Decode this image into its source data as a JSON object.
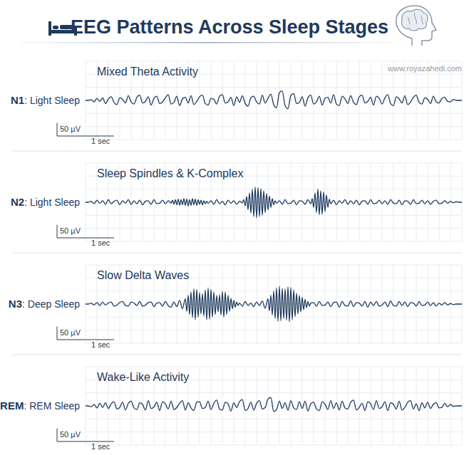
{
  "header": {
    "title": "EEG Patterns Across Sleep Stages",
    "watermark": "www.royazahedi.com"
  },
  "chart_data": [
    {
      "type": "line",
      "title": "Mixed Theta Activity",
      "ylabel": "N1: Light Sleep",
      "color": "#1f3a5c",
      "xlim": [
        0,
        6.6
      ],
      "ylim": [
        -150,
        150
      ],
      "xticks": [
        0,
        0.2,
        0.4,
        0.6,
        0.8,
        1,
        1.2,
        1.4,
        1.6,
        1.8,
        2,
        2.2,
        2.4,
        2.6,
        2.8,
        3,
        3.2,
        3.4,
        3.6,
        3.8,
        4,
        4.2,
        4.4,
        4.6,
        4.8,
        5,
        5.2,
        5.4,
        5.6,
        5.8,
        6,
        6.2,
        6.4,
        6.6
      ],
      "yticks": [
        -150,
        -100,
        -50,
        0,
        50,
        100,
        150
      ],
      "grid": true,
      "tick_labels": false,
      "scale_bar": {
        "amplitude": 50,
        "amplitude_label": "50 µV",
        "time": 1,
        "time_label": "1 sec"
      },
      "x": [
        0,
        0.05,
        0.1,
        0.15,
        0.2,
        0.25,
        0.3,
        0.35,
        0.4,
        0.45,
        0.5,
        0.55,
        0.6,
        0.65,
        0.7,
        0.75,
        0.8,
        0.85,
        0.9,
        0.95,
        1,
        1.05,
        1.1,
        1.15,
        1.2,
        1.25,
        1.3,
        1.35,
        1.4,
        1.45,
        1.5,
        1.55,
        1.6,
        1.65,
        1.7,
        1.75,
        1.8,
        1.85,
        1.9,
        1.95,
        2,
        2.05,
        2.1,
        2.15,
        2.2,
        2.25,
        2.3,
        2.35,
        2.4,
        2.45,
        2.5,
        2.55,
        2.6,
        2.65,
        2.7,
        2.75,
        2.8,
        2.85,
        2.9,
        2.95,
        3,
        3.05,
        3.1,
        3.15,
        3.2,
        3.25,
        3.3,
        3.35,
        3.4,
        3.45,
        3.5,
        3.55,
        3.6,
        3.65,
        3.7,
        3.75,
        3.8,
        3.85,
        3.9,
        3.95,
        4,
        4.05,
        4.1,
        4.15,
        4.2,
        4.25,
        4.3,
        4.35,
        4.4,
        4.45,
        4.5,
        4.55,
        4.6,
        4.65,
        4.7,
        4.75,
        4.8,
        4.85,
        4.9,
        4.95,
        5,
        5.05,
        5.1,
        5.15,
        5.2,
        5.25,
        5.3,
        5.35,
        5.4,
        5.45,
        5.5,
        5.55,
        5.6,
        5.65,
        5.7,
        5.75,
        5.8,
        5.85,
        5.9,
        5.95,
        6,
        6.05,
        6.1,
        6.15,
        6.2,
        6.25,
        6.3,
        6.35,
        6.4,
        6.45,
        6.5,
        6.55,
        6.6
      ],
      "values": [
        0,
        0,
        3,
        -6,
        8,
        -4,
        10,
        -12,
        6,
        14,
        -8,
        -16,
        10,
        4,
        -10,
        18,
        -6,
        -14,
        12,
        20,
        -10,
        -4,
        14,
        -18,
        8,
        16,
        -12,
        -6,
        10,
        22,
        -14,
        -8,
        16,
        -20,
        6,
        12,
        -10,
        18,
        -16,
        -4,
        14,
        20,
        -12,
        -18,
        8,
        4,
        -14,
        16,
        22,
        -10,
        -6,
        12,
        -20,
        14,
        -8,
        18,
        -12,
        -22,
        10,
        16,
        -6,
        -14,
        20,
        -10,
        8,
        24,
        -16,
        -28,
        30,
        36,
        -20,
        -32,
        18,
        26,
        -12,
        -8,
        14,
        -22,
        10,
        20,
        -14,
        -6,
        16,
        -18,
        8,
        12,
        -10,
        22,
        -14,
        -20,
        16,
        6,
        -12,
        18,
        -8,
        -16,
        14,
        20,
        -10,
        -4,
        12,
        -18,
        16,
        8,
        -14,
        10,
        22,
        -12,
        -20,
        14,
        6,
        -10,
        18,
        -16,
        -6,
        12,
        20,
        -8,
        -14,
        10,
        4,
        -12,
        16,
        -6,
        -10,
        8,
        12,
        -4,
        -6,
        4,
        0,
        0,
        0
      ]
    },
    {
      "type": "line",
      "title": "Sleep Spindles & K-Complex",
      "ylabel": "N2: Light Sleep",
      "color": "#1f3a5c",
      "xlim": [
        0,
        6.6
      ],
      "ylim": [
        -150,
        150
      ],
      "xticks": [
        0,
        0.2,
        0.4,
        0.6,
        0.8,
        1,
        1.2,
        1.4,
        1.6,
        1.8,
        2,
        2.2,
        2.4,
        2.6,
        2.8,
        3,
        3.2,
        3.4,
        3.6,
        3.8,
        4,
        4.2,
        4.4,
        4.6,
        4.8,
        5,
        5.2,
        5.4,
        5.6,
        5.8,
        6,
        6.2,
        6.4,
        6.6
      ],
      "yticks": [
        -150,
        -100,
        -50,
        0,
        50,
        100,
        150
      ],
      "grid": true,
      "tick_labels": false,
      "scale_bar": {
        "amplitude": 50,
        "amplitude_label": "50 µV",
        "time": 1,
        "time_label": "1 sec"
      },
      "x": [
        0,
        0.05,
        0.1,
        0.15,
        0.2,
        0.25,
        0.3,
        0.35,
        0.4,
        0.45,
        0.5,
        0.55,
        0.6,
        0.65,
        0.7,
        0.75,
        0.8,
        0.85,
        0.9,
        0.95,
        1,
        1.05,
        1.1,
        1.15,
        1.2,
        1.25,
        1.3,
        1.35,
        1.4,
        1.45,
        1.5,
        1.525,
        1.55,
        1.575,
        1.6,
        1.625,
        1.65,
        1.675,
        1.7,
        1.725,
        1.75,
        1.775,
        1.8,
        1.825,
        1.85,
        1.875,
        1.9,
        1.925,
        1.95,
        1.975,
        2,
        2.025,
        2.05,
        2.075,
        2.1,
        2.125,
        2.15,
        2.2,
        2.25,
        2.3,
        2.35,
        2.4,
        2.45,
        2.5,
        2.55,
        2.6,
        2.65,
        2.7,
        2.75,
        2.775,
        2.8,
        2.825,
        2.85,
        2.875,
        2.9,
        2.925,
        2.95,
        2.975,
        3,
        3.025,
        3.05,
        3.075,
        3.1,
        3.125,
        3.15,
        3.175,
        3.2,
        3.225,
        3.25,
        3.275,
        3.3,
        3.325,
        3.35,
        3.4,
        3.45,
        3.5,
        3.55,
        3.6,
        3.65,
        3.7,
        3.75,
        3.8,
        3.85,
        3.9,
        3.95,
        3.975,
        4,
        4.025,
        4.05,
        4.075,
        4.1,
        4.125,
        4.15,
        4.175,
        4.2,
        4.225,
        4.25,
        4.275,
        4.3,
        4.35,
        4.4,
        4.45,
        4.5,
        4.55,
        4.6,
        4.65,
        4.7,
        4.75,
        4.8,
        4.85,
        4.9,
        4.95,
        5,
        5.05,
        5.1,
        5.15,
        5.2,
        5.25,
        5.3,
        5.35,
        5.4,
        5.45,
        5.5,
        5.55,
        5.6,
        5.65,
        5.7,
        5.75,
        5.8,
        5.85,
        5.9,
        5.95,
        6,
        6.05,
        6.1,
        6.15,
        6.2,
        6.25,
        6.3,
        6.35,
        6.4,
        6.45,
        6.5,
        6.55,
        6.6
      ],
      "values": [
        0,
        0,
        4,
        -6,
        8,
        -4,
        6,
        -8,
        10,
        -6,
        4,
        8,
        -10,
        6,
        -4,
        10,
        -8,
        6,
        -6,
        8,
        -10,
        4,
        6,
        -8,
        10,
        -6,
        -4,
        8,
        -6,
        6,
        -4,
        8,
        -8,
        10,
        -10,
        12,
        -12,
        10,
        -10,
        14,
        -12,
        12,
        -14,
        10,
        -12,
        14,
        -10,
        12,
        -12,
        10,
        -8,
        8,
        -10,
        6,
        -6,
        4,
        -4,
        6,
        -8,
        10,
        -6,
        4,
        -10,
        8,
        -4,
        6,
        -8,
        4,
        -2,
        10,
        -14,
        22,
        -28,
        36,
        -42,
        50,
        -55,
        58,
        -60,
        56,
        -55,
        52,
        -50,
        44,
        -40,
        34,
        -30,
        24,
        -20,
        14,
        -10,
        6,
        -4,
        6,
        -8,
        10,
        -6,
        -4,
        8,
        -10,
        6,
        4,
        -8,
        10,
        -6,
        14,
        -20,
        36,
        -40,
        50,
        -48,
        44,
        -46,
        40,
        -36,
        28,
        -20,
        12,
        -6,
        8,
        -10,
        6,
        -4,
        10,
        -8,
        6,
        -6,
        8,
        -10,
        4,
        6,
        -8,
        10,
        -6,
        -4,
        8,
        -6,
        6,
        -8,
        10,
        -4,
        -6,
        8,
        -10,
        6,
        4,
        -8,
        10,
        -6,
        -4,
        8,
        -6,
        6,
        -8,
        4,
        8,
        -6,
        -4,
        6,
        -4,
        4,
        -2,
        2,
        0,
        0
      ]
    },
    {
      "type": "line",
      "title": "Slow Delta Waves",
      "ylabel": "N3: Deep Sleep",
      "color": "#1f3a5c",
      "xlim": [
        0,
        6.6
      ],
      "ylim": [
        -150,
        150
      ],
      "xticks": [
        0,
        0.2,
        0.4,
        0.6,
        0.8,
        1,
        1.2,
        1.4,
        1.6,
        1.8,
        2,
        2.2,
        2.4,
        2.6,
        2.8,
        3,
        3.2,
        3.4,
        3.6,
        3.8,
        4,
        4.2,
        4.4,
        4.6,
        4.8,
        5,
        5.2,
        5.4,
        5.6,
        5.8,
        6,
        6.2,
        6.4,
        6.6
      ],
      "yticks": [
        -150,
        -100,
        -50,
        0,
        50,
        100,
        150
      ],
      "grid": true,
      "tick_labels": false,
      "scale_bar": {
        "amplitude": 50,
        "amplitude_label": "50 µV",
        "time": 1,
        "time_label": "1 sec"
      },
      "x": [
        0,
        0.05,
        0.1,
        0.15,
        0.2,
        0.25,
        0.3,
        0.35,
        0.4,
        0.45,
        0.5,
        0.55,
        0.6,
        0.65,
        0.7,
        0.75,
        0.8,
        0.85,
        0.9,
        0.95,
        1,
        1.05,
        1.1,
        1.15,
        1.2,
        1.25,
        1.3,
        1.35,
        1.4,
        1.45,
        1.5,
        1.55,
        1.6,
        1.65,
        1.7,
        1.75,
        1.775,
        1.8,
        1.825,
        1.85,
        1.875,
        1.9,
        1.925,
        1.95,
        1.975,
        2,
        2.025,
        2.05,
        2.075,
        2.1,
        2.125,
        2.15,
        2.175,
        2.2,
        2.225,
        2.25,
        2.275,
        2.3,
        2.325,
        2.35,
        2.375,
        2.4,
        2.425,
        2.45,
        2.475,
        2.5,
        2.525,
        2.55,
        2.575,
        2.6,
        2.625,
        2.65,
        2.675,
        2.7,
        2.75,
        2.8,
        2.85,
        2.9,
        2.95,
        3,
        3.05,
        3.1,
        3.15,
        3.2,
        3.225,
        3.25,
        3.275,
        3.3,
        3.325,
        3.35,
        3.375,
        3.4,
        3.425,
        3.45,
        3.475,
        3.5,
        3.525,
        3.55,
        3.575,
        3.6,
        3.625,
        3.65,
        3.675,
        3.7,
        3.725,
        3.75,
        3.775,
        3.8,
        3.825,
        3.85,
        3.875,
        3.9,
        3.925,
        3.95,
        4,
        4.05,
        4.1,
        4.15,
        4.2,
        4.25,
        4.3,
        4.35,
        4.4,
        4.45,
        4.5,
        4.55,
        4.6,
        4.65,
        4.7,
        4.75,
        4.8,
        4.85,
        4.9,
        4.95,
        5,
        5.05,
        5.1,
        5.15,
        5.2,
        5.25,
        5.3,
        5.35,
        5.4,
        5.45,
        5.5,
        5.55,
        5.6,
        5.65,
        5.7,
        5.75,
        5.8,
        5.85,
        5.9,
        5.95,
        6,
        6.05,
        6.1,
        6.15,
        6.2,
        6.25,
        6.3,
        6.35,
        6.4,
        6.45,
        6.5,
        6.55,
        6.6
      ],
      "values": [
        0,
        0,
        4,
        -4,
        6,
        -6,
        8,
        -4,
        4,
        8,
        -8,
        -4,
        6,
        10,
        -6,
        -8,
        8,
        4,
        -6,
        10,
        -8,
        -4,
        6,
        8,
        -10,
        4,
        6,
        -8,
        10,
        -6,
        -12,
        8,
        -10,
        14,
        -18,
        20,
        -28,
        34,
        -40,
        46,
        -52,
        58,
        -60,
        56,
        -50,
        44,
        -38,
        40,
        -46,
        54,
        -60,
        62,
        -58,
        56,
        -50,
        46,
        -40,
        34,
        -30,
        36,
        -42,
        48,
        -50,
        46,
        -40,
        34,
        -28,
        22,
        -18,
        14,
        -12,
        8,
        -6,
        4,
        -8,
        10,
        -6,
        4,
        -10,
        8,
        -6,
        12,
        -16,
        20,
        -26,
        34,
        -42,
        50,
        -56,
        62,
        -66,
        68,
        -64,
        60,
        -56,
        58,
        -62,
        66,
        -68,
        64,
        -60,
        54,
        -48,
        42,
        -38,
        34,
        -30,
        26,
        -22,
        18,
        -14,
        10,
        -8,
        4,
        6,
        -8,
        10,
        -6,
        -4,
        8,
        -10,
        6,
        8,
        -12,
        10,
        -6,
        -8,
        12,
        -10,
        6,
        4,
        -8,
        10,
        -12,
        8,
        -6,
        10,
        -8,
        -4,
        8,
        -10,
        12,
        -6,
        -8,
        10,
        -6,
        8,
        -10,
        6,
        4,
        -8,
        10,
        -6,
        -4,
        8,
        -6,
        6,
        -8,
        4,
        -4,
        6,
        -4,
        2,
        -2,
        0,
        0,
        0
      ]
    },
    {
      "type": "line",
      "title": "Wake-Like Activity",
      "ylabel": "REM: REM Sleep",
      "color": "#1f3a5c",
      "xlim": [
        0,
        6.6
      ],
      "ylim": [
        -150,
        150
      ],
      "xticks": [
        0,
        0.2,
        0.4,
        0.6,
        0.8,
        1,
        1.2,
        1.4,
        1.6,
        1.8,
        2,
        2.2,
        2.4,
        2.6,
        2.8,
        3,
        3.2,
        3.4,
        3.6,
        3.8,
        4,
        4.2,
        4.4,
        4.6,
        4.8,
        5,
        5.2,
        5.4,
        5.6,
        5.8,
        6,
        6.2,
        6.4,
        6.6
      ],
      "yticks": [
        -150,
        -100,
        -50,
        0,
        50,
        100,
        150
      ],
      "grid": true,
      "tick_labels": false,
      "scale_bar": {
        "amplitude": 50,
        "amplitude_label": "50 µV",
        "time": 1,
        "time_label": "1 sec"
      },
      "x": [
        0,
        0.05,
        0.1,
        0.15,
        0.2,
        0.25,
        0.3,
        0.35,
        0.4,
        0.45,
        0.5,
        0.55,
        0.6,
        0.65,
        0.7,
        0.75,
        0.8,
        0.85,
        0.9,
        0.95,
        1,
        1.05,
        1.1,
        1.15,
        1.2,
        1.25,
        1.3,
        1.35,
        1.4,
        1.45,
        1.5,
        1.55,
        1.6,
        1.65,
        1.7,
        1.75,
        1.8,
        1.85,
        1.9,
        1.95,
        2,
        2.05,
        2.1,
        2.15,
        2.2,
        2.25,
        2.3,
        2.35,
        2.4,
        2.45,
        2.5,
        2.55,
        2.6,
        2.65,
        2.7,
        2.75,
        2.8,
        2.85,
        2.9,
        2.95,
        3,
        3.05,
        3.1,
        3.15,
        3.2,
        3.25,
        3.3,
        3.35,
        3.4,
        3.45,
        3.5,
        3.55,
        3.6,
        3.65,
        3.7,
        3.75,
        3.8,
        3.85,
        3.9,
        3.95,
        4,
        4.05,
        4.1,
        4.15,
        4.2,
        4.25,
        4.3,
        4.35,
        4.4,
        4.45,
        4.5,
        4.55,
        4.6,
        4.65,
        4.7,
        4.75,
        4.8,
        4.85,
        4.9,
        4.95,
        5,
        5.05,
        5.1,
        5.15,
        5.2,
        5.25,
        5.3,
        5.35,
        5.4,
        5.45,
        5.5,
        5.55,
        5.6,
        5.65,
        5.7,
        5.75,
        5.8,
        5.85,
        5.9,
        5.95,
        6,
        6.05,
        6.1,
        6.15,
        6.2,
        6.25,
        6.3,
        6.35,
        6.4,
        6.45,
        6.5,
        6.55,
        6.6
      ],
      "values": [
        0,
        0,
        -4,
        6,
        -8,
        10,
        -6,
        12,
        -10,
        8,
        16,
        -12,
        -6,
        14,
        -16,
        10,
        18,
        -8,
        -14,
        12,
        6,
        -16,
        20,
        -10,
        -4,
        14,
        -18,
        16,
        8,
        -12,
        18,
        -14,
        -6,
        10,
        20,
        -16,
        12,
        -8,
        -18,
        14,
        16,
        -10,
        -6,
        18,
        -14,
        10,
        22,
        -12,
        -16,
        14,
        8,
        -20,
        12,
        -6,
        16,
        24,
        -18,
        -10,
        14,
        -16,
        10,
        20,
        -12,
        -6,
        26,
        32,
        -22,
        -14,
        18,
        -10,
        12,
        -16,
        20,
        -8,
        -14,
        16,
        -10,
        18,
        -20,
        8,
        14,
        -12,
        -18,
        16,
        6,
        -14,
        20,
        -10,
        12,
        -16,
        18,
        -8,
        -12,
        14,
        22,
        -16,
        -6,
        10,
        -18,
        16,
        8,
        -14,
        20,
        -10,
        -4,
        16,
        -18,
        12,
        6,
        -12,
        18,
        -16,
        -6,
        14,
        20,
        -12,
        8,
        -18,
        12,
        -8,
        14,
        -10,
        6,
        12,
        -8,
        -6,
        10,
        -4,
        6,
        -2,
        0,
        0,
        0
      ]
    }
  ]
}
